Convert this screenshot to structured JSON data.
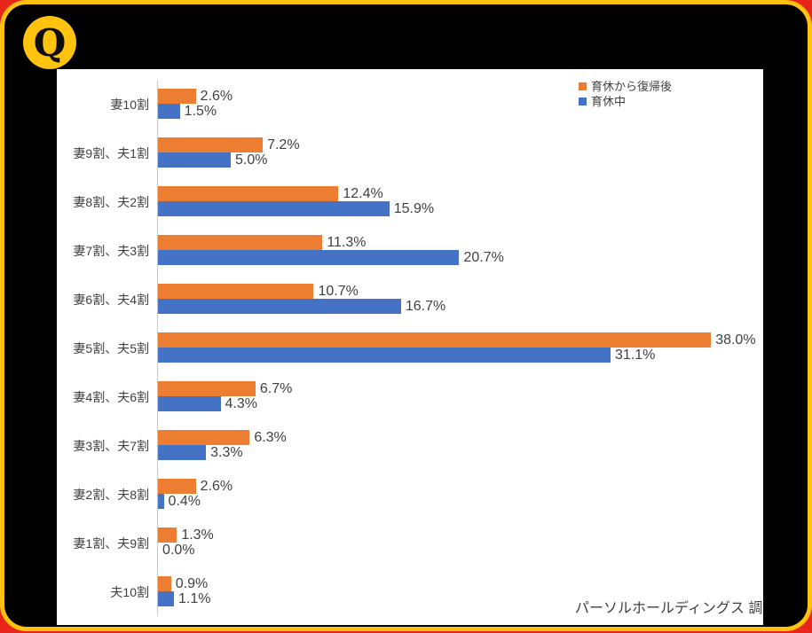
{
  "badge": {
    "label": "Q"
  },
  "source_note": "パーソルホールディングス 調",
  "colors": {
    "series_after_return": "#ED7D31",
    "series_during_leave": "#4472C4",
    "badge_yellow": "#FFC20E",
    "card_background": "#000000",
    "panel_background": "#FFFFFF",
    "value_text": "#404040",
    "axis_line": "#C9C9C9",
    "bottom_edge_red": "#E8251B"
  },
  "chart_data": {
    "type": "bar",
    "orientation": "horizontal",
    "title": "",
    "xlabel": "",
    "ylabel": "",
    "xlim": [
      0,
      40
    ],
    "grid": false,
    "legend_position": "top-right",
    "value_suffix": "%",
    "categories": [
      "妻10割",
      "妻9割、夫1割",
      "妻8割、夫2割",
      "妻7割、夫3割",
      "妻6割、夫4割",
      "妻5割、夫5割",
      "妻4割、夫6割",
      "妻3割、夫7割",
      "妻2割、夫8割",
      "妻1割、夫9割",
      "夫10割"
    ],
    "series": [
      {
        "name": "育休から復帰後",
        "color": "#ED7D31",
        "values": [
          2.6,
          7.2,
          12.4,
          11.3,
          10.7,
          38.0,
          6.7,
          6.3,
          2.6,
          1.3,
          0.9
        ]
      },
      {
        "name": "育休中",
        "color": "#4472C4",
        "values": [
          1.5,
          5.0,
          15.9,
          20.7,
          16.7,
          31.1,
          4.3,
          3.3,
          0.4,
          0.0,
          1.1
        ]
      }
    ]
  }
}
